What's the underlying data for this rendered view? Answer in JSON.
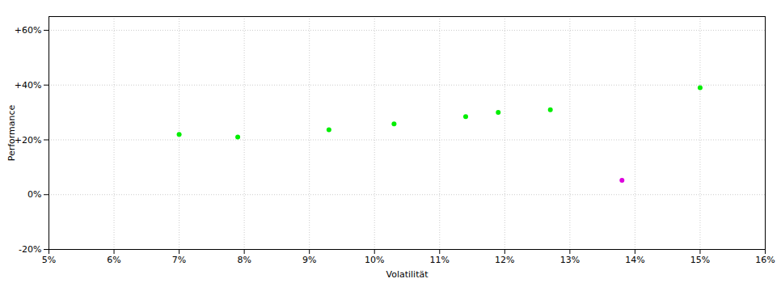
{
  "chart_data": {
    "type": "scatter",
    "xlabel": "Volatilität",
    "ylabel": "Performance",
    "xlim": [
      0.05,
      0.16
    ],
    "ylim": [
      -0.2,
      0.65
    ],
    "xticks": [
      {
        "value": 0.05,
        "label": "5%"
      },
      {
        "value": 0.06,
        "label": "6%"
      },
      {
        "value": 0.07,
        "label": "7%"
      },
      {
        "value": 0.08,
        "label": "8%"
      },
      {
        "value": 0.09,
        "label": "9%"
      },
      {
        "value": 0.1,
        "label": "10%"
      },
      {
        "value": 0.11,
        "label": "11%"
      },
      {
        "value": 0.12,
        "label": "12%"
      },
      {
        "value": 0.13,
        "label": "13%"
      },
      {
        "value": 0.14,
        "label": "14%"
      },
      {
        "value": 0.15,
        "label": "15%"
      },
      {
        "value": 0.16,
        "label": "16%"
      }
    ],
    "yticks": [
      {
        "value": -0.2,
        "label": "-20%"
      },
      {
        "value": 0.0,
        "label": "0%"
      },
      {
        "value": 0.2,
        "label": "+20%"
      },
      {
        "value": 0.4,
        "label": "+40%"
      },
      {
        "value": 0.6,
        "label": "+60%"
      }
    ],
    "grid": true,
    "series": [
      {
        "color": "#00ee00",
        "x": [
          0.07,
          0.079,
          0.093,
          0.103,
          0.114,
          0.119,
          0.127,
          0.15
        ],
        "values": [
          0.22,
          0.21,
          0.237,
          0.258,
          0.285,
          0.3,
          0.31,
          0.39
        ]
      },
      {
        "color": "#dd00dd",
        "x": [
          0.138
        ],
        "values": [
          0.052
        ]
      }
    ]
  }
}
